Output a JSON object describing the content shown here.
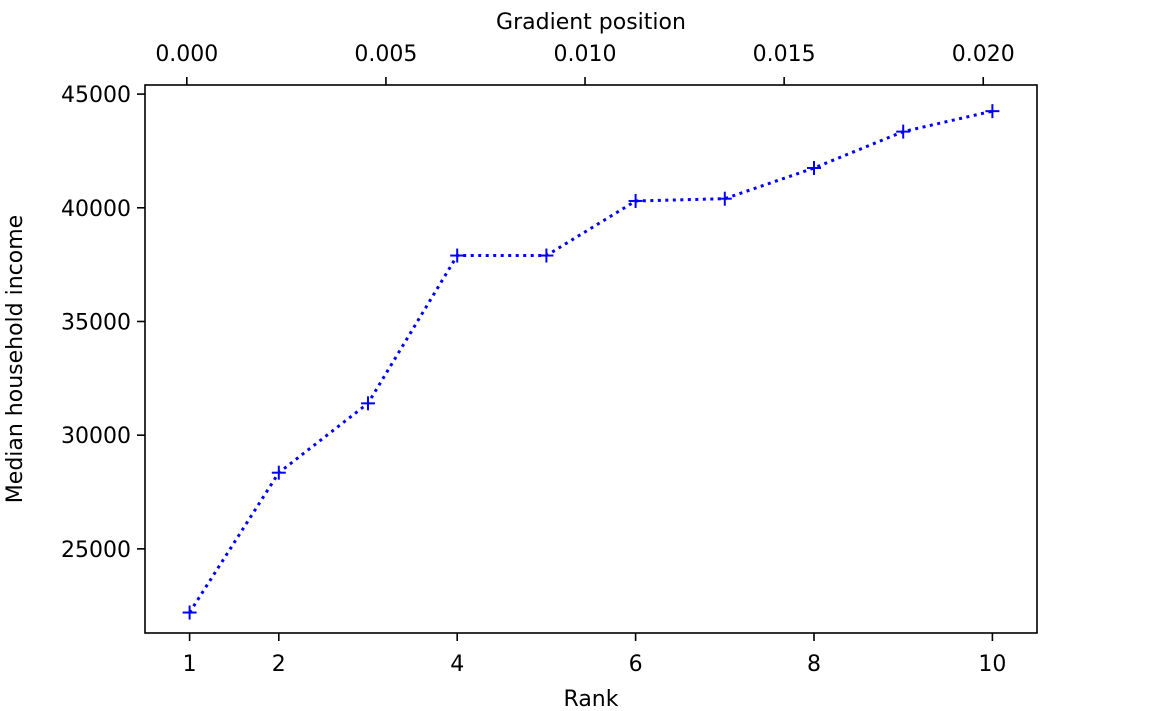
{
  "chart_data": {
    "type": "line",
    "xlabel": "Rank",
    "ylabel": "Median household income",
    "top_xlabel": "Gradient position",
    "xlim": [
      0.5,
      10.5
    ],
    "ylim": [
      21300,
      45400
    ],
    "x_ticks": [
      1,
      2,
      4,
      6,
      8,
      10
    ],
    "y_ticks": [
      25000,
      30000,
      35000,
      40000,
      45000
    ],
    "top_xlim": [
      -0.00105,
      0.02135
    ],
    "top_x_ticks": [
      0.0,
      0.005,
      0.01,
      0.015,
      0.02
    ],
    "top_x_tick_labels": [
      "0.000",
      "0.005",
      "0.010",
      "0.015",
      "0.020"
    ],
    "series": [
      {
        "name": "Median household income",
        "color": "#0000ff",
        "line_style": "dotted",
        "marker": "plus",
        "x": [
          1,
          2,
          3,
          4,
          5,
          6,
          7,
          8,
          9,
          10
        ],
        "y": [
          22200,
          28350,
          31400,
          37900,
          37900,
          40300,
          40400,
          41750,
          43350,
          44250
        ]
      }
    ]
  }
}
